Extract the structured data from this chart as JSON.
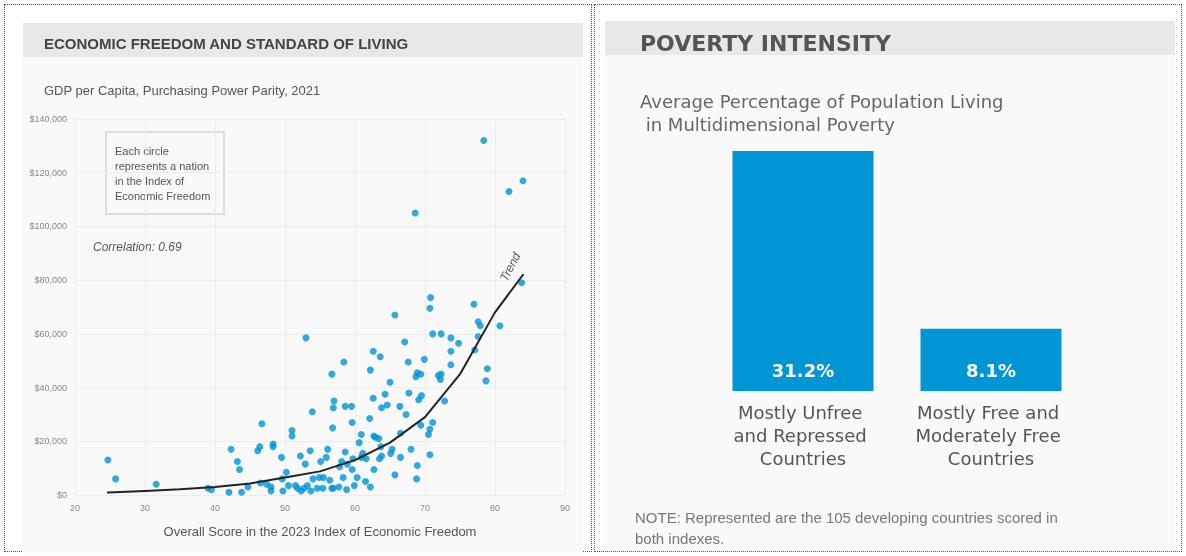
{
  "chart_data": [
    {
      "type": "scatter",
      "title": "ECONOMIC FREEDOM AND STANDARD OF LIVING",
      "subtitle": "GDP per Capita, Purchasing Power Parity, 2021",
      "xlabel": "Overall Score in the 2023 Index of Economic Freedom",
      "annotations": [
        "Each circle represents a nation in the Index of Economic Freedom",
        "Correlation: 0.69"
      ],
      "xlim": [
        20,
        90
      ],
      "xticks": [
        20,
        30,
        40,
        50,
        60,
        70,
        80,
        90
      ],
      "ylim": [
        0,
        140000
      ],
      "yticks": [
        {
          "value": 0,
          "label": "$0"
        },
        {
          "value": 20000,
          "label": "$20,000"
        },
        {
          "value": 40000,
          "label": "$40,000"
        },
        {
          "value": 60000,
          "label": "$60,000"
        },
        {
          "value": 80000,
          "label": "$80,000"
        },
        {
          "value": 100000,
          "label": "$100,000"
        },
        {
          "value": 120000,
          "label": "$120,000"
        },
        {
          "value": 140000,
          "label": "$140,000"
        }
      ],
      "grid": true,
      "legend": false,
      "marker": "circle",
      "series": [
        {
          "type": "scatter",
          "color": "#0095d5",
          "x": [
            24.7,
            25.8,
            31.6,
            39.0,
            39.5,
            42.0,
            42.3,
            43.2,
            43.5,
            43.8,
            44.7,
            46.1,
            46.4,
            46.5,
            46.7,
            47.4,
            48.0,
            48.3,
            48.3,
            48.0,
            49.5,
            49.6,
            49.7,
            50.2,
            50.5,
            51.0,
            51.0,
            51.5,
            51.8,
            52.2,
            52.3,
            52.7,
            52.9,
            53.0,
            53.2,
            53.6,
            53.7,
            53.9,
            54.0,
            54.6,
            54.9,
            55.1,
            55.5,
            55.4,
            55.9,
            56.1,
            56.4,
            56.7,
            56.7,
            56.8,
            56.9,
            57.0,
            56.9,
            57.7,
            57.8,
            58.1,
            58.3,
            58.4,
            58.6,
            58.6,
            58.8,
            58.9,
            59.5,
            59.6,
            59.6,
            59.7,
            59.9,
            60.3,
            60.6,
            60.9,
            60.9,
            61.1,
            61.5,
            61.6,
            62.1,
            62.2,
            62.2,
            62.6,
            62.6,
            62.7,
            62.7,
            62.9,
            63.4,
            63.6,
            63.7,
            63.8,
            63.5,
            63.8,
            64.3,
            64.6,
            65.0,
            65.1,
            65.3,
            65.7,
            65.7,
            66.4,
            66.5,
            66.5,
            67.1,
            67.3,
            67.6,
            67.7,
            68.0,
            68.7,
            68.9,
            68.9,
            68.8,
            69.1,
            69.4,
            69.5,
            69.4,
            69.9,
            70.5,
            70.7,
            70.7,
            70.7,
            70.8,
            71.1,
            71.1,
            71.9,
            72.2,
            72.3,
            72.3,
            72.8,
            73.7,
            73.7,
            73.7,
            74.8,
            77.0,
            77.1,
            77.6,
            77.6,
            77.9,
            78.7,
            78.9,
            80.7,
            78.4,
            68.6,
            82.0,
            84.0,
            83.8
          ],
          "values": [
            13000,
            6000,
            4000,
            2500,
            2000,
            1000,
            17000,
            12500,
            9500,
            1000,
            3000,
            16500,
            18000,
            4500,
            26500,
            4000,
            3000,
            19000,
            18000,
            1500,
            14000,
            6000,
            1500,
            8500,
            3500,
            24000,
            22000,
            3500,
            2500,
            14500,
            1500,
            2500,
            11500,
            58500,
            3500,
            16500,
            1500,
            31000,
            6000,
            2500,
            6500,
            12500,
            6500,
            2500,
            14000,
            17000,
            5500,
            45000,
            2500,
            25000,
            32500,
            35000,
            2500,
            3000,
            10500,
            12500,
            6500,
            49500,
            16000,
            33000,
            2000,
            11500,
            33000,
            27000,
            9500,
            13500,
            3500,
            6500,
            19500,
            22500,
            14000,
            15500,
            5000,
            13500,
            28500,
            46500,
            3000,
            53500,
            36000,
            22000,
            9500,
            21500,
            21000,
            51500,
            18000,
            32500,
            13500,
            14500,
            37500,
            33500,
            42000,
            15500,
            17000,
            67000,
            7500,
            33000,
            23000,
            14000,
            57000,
            30000,
            49500,
            38000,
            17000,
            44000,
            45500,
            11000,
            6000,
            35500,
            45000,
            37000,
            26000,
            50500,
            22500,
            24500,
            15000,
            69500,
            73500,
            60000,
            27000,
            44500,
            43000,
            45000,
            60000,
            35000,
            58500,
            53500,
            48500,
            56500,
            71000,
            54000,
            64500,
            59000,
            63000,
            42500,
            47000,
            63000,
            132000,
            105000,
            113000,
            117000,
            79000
          ]
        },
        {
          "type": "line",
          "name": "Trend",
          "color": "#222222",
          "marker": "none",
          "line_style": "solid",
          "x": [
            24.7,
            30,
            35,
            40,
            45,
            50,
            55,
            60,
            65,
            70,
            75,
            80,
            84
          ],
          "values": [
            900,
            1500,
            2100,
            3000,
            4300,
            6500,
            8800,
            13000,
            19500,
            29000,
            45000,
            68000,
            82000
          ]
        }
      ]
    },
    {
      "type": "bar",
      "title": "POVERTY INTENSITY",
      "subtitle": "Average Percentage of Population Living in Multidimensional Poverty",
      "categories": [
        "Mostly Unfree and Repressed Countries",
        "Mostly Free and Moderately Free Countries"
      ],
      "values": [
        31.2,
        8.1
      ],
      "value_labels": [
        "31.2%",
        "8.1%"
      ],
      "color": "#0095d5",
      "annotations": [
        "NOTE: Represented are the 105 developing countries scored in both indexes."
      ]
    }
  ]
}
